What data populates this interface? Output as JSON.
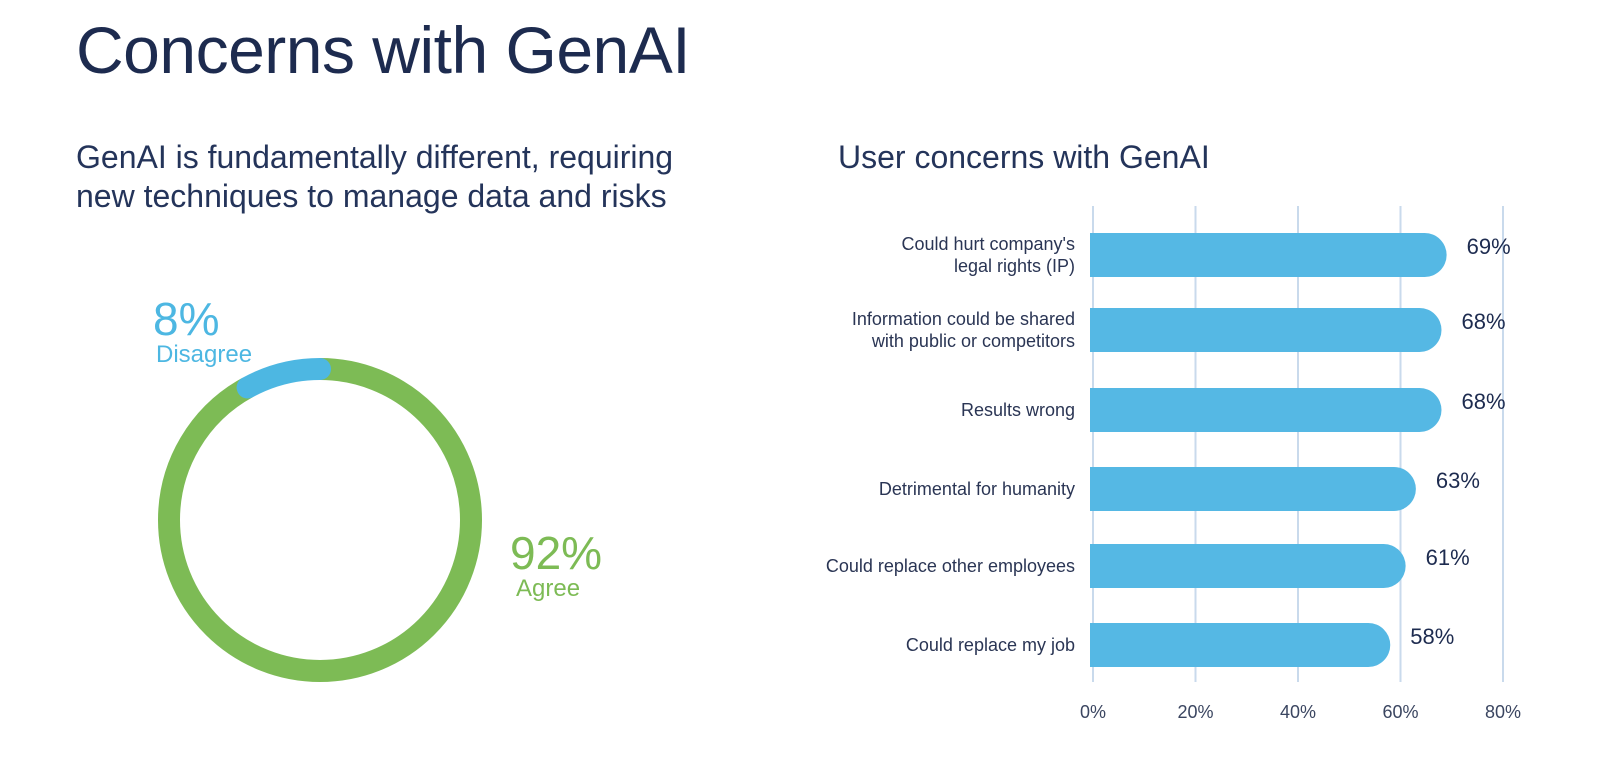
{
  "page": {
    "title": "Concerns with GenAI"
  },
  "left_panel": {
    "subtitle": "GenAI is fundamentally different, requiring new techniques to manage data and risks"
  },
  "right_panel": {
    "subtitle": "User concerns with GenAI"
  },
  "colors": {
    "agree": "#7dbb55",
    "disagree": "#4db7e2",
    "bar": "#55b8e4",
    "grid": "#c9daec",
    "text": "#1d2b4f"
  },
  "chart_data": [
    {
      "type": "pie",
      "variant": "donut",
      "categories": [
        "Disagree",
        "Agree"
      ],
      "values": [
        8,
        92
      ],
      "value_labels": [
        "8%",
        "92%"
      ],
      "colors": [
        "#4db7e2",
        "#7dbb55"
      ]
    },
    {
      "type": "bar",
      "orientation": "horizontal",
      "title": "User concerns with GenAI",
      "categories": [
        [
          "Could hurt company's",
          "legal rights (IP)"
        ],
        [
          "Information could be shared",
          "with public or competitors"
        ],
        [
          "Results wrong"
        ],
        [
          "Detrimental for humanity"
        ],
        [
          "Could replace other employees"
        ],
        [
          "Could replace my job"
        ]
      ],
      "values": [
        69,
        68,
        68,
        63,
        61,
        58
      ],
      "value_labels": [
        "69%",
        "68%",
        "68%",
        "63%",
        "61%",
        "58%"
      ],
      "xlim": [
        0,
        80
      ],
      "xticks": [
        0,
        20,
        40,
        60,
        80
      ],
      "xtick_labels": [
        "0%",
        "20%",
        "40%",
        "60%",
        "80%"
      ],
      "grid": true,
      "bar_color": "#55b8e4"
    }
  ]
}
